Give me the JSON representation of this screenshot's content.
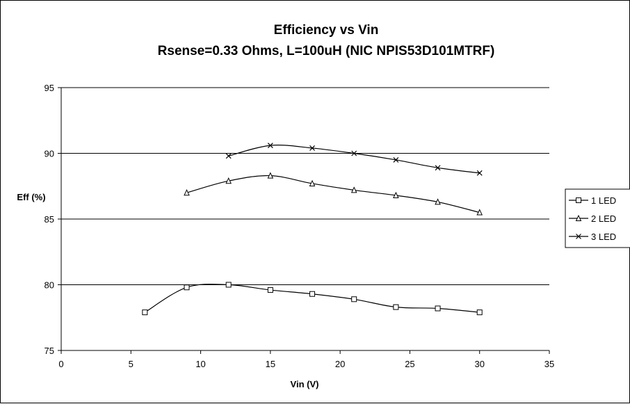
{
  "chart_data": {
    "type": "line",
    "title": "Efficiency vs Vin",
    "subtitle": "Rsense=0.33 Ohms, L=100uH (NIC NPIS53D101MTRF)",
    "xlabel": "Vin (V)",
    "ylabel": "Eff (%)",
    "xlim": [
      0,
      35
    ],
    "ylim": [
      75,
      95
    ],
    "x_ticks": [
      0,
      5,
      10,
      15,
      20,
      25,
      30,
      35
    ],
    "y_ticks": [
      75,
      80,
      85,
      90,
      95
    ],
    "grid": "horizontal major gridlines",
    "legend_position": "right",
    "series": [
      {
        "name": "1 LED",
        "marker": "square",
        "x": [
          6,
          9,
          12,
          15,
          18,
          21,
          24,
          27,
          30
        ],
        "values": [
          77.9,
          79.8,
          80.0,
          79.6,
          79.3,
          78.9,
          78.3,
          78.2,
          77.9
        ]
      },
      {
        "name": "2 LED",
        "marker": "triangle",
        "x": [
          9,
          12,
          15,
          18,
          21,
          24,
          27,
          30
        ],
        "values": [
          87.0,
          87.9,
          88.3,
          87.7,
          87.2,
          86.8,
          86.3,
          85.5
        ]
      },
      {
        "name": "3 LED",
        "marker": "x",
        "x": [
          12,
          15,
          18,
          21,
          24,
          27,
          30
        ],
        "values": [
          89.8,
          90.6,
          90.4,
          90.0,
          89.5,
          88.9,
          88.5
        ]
      }
    ]
  }
}
